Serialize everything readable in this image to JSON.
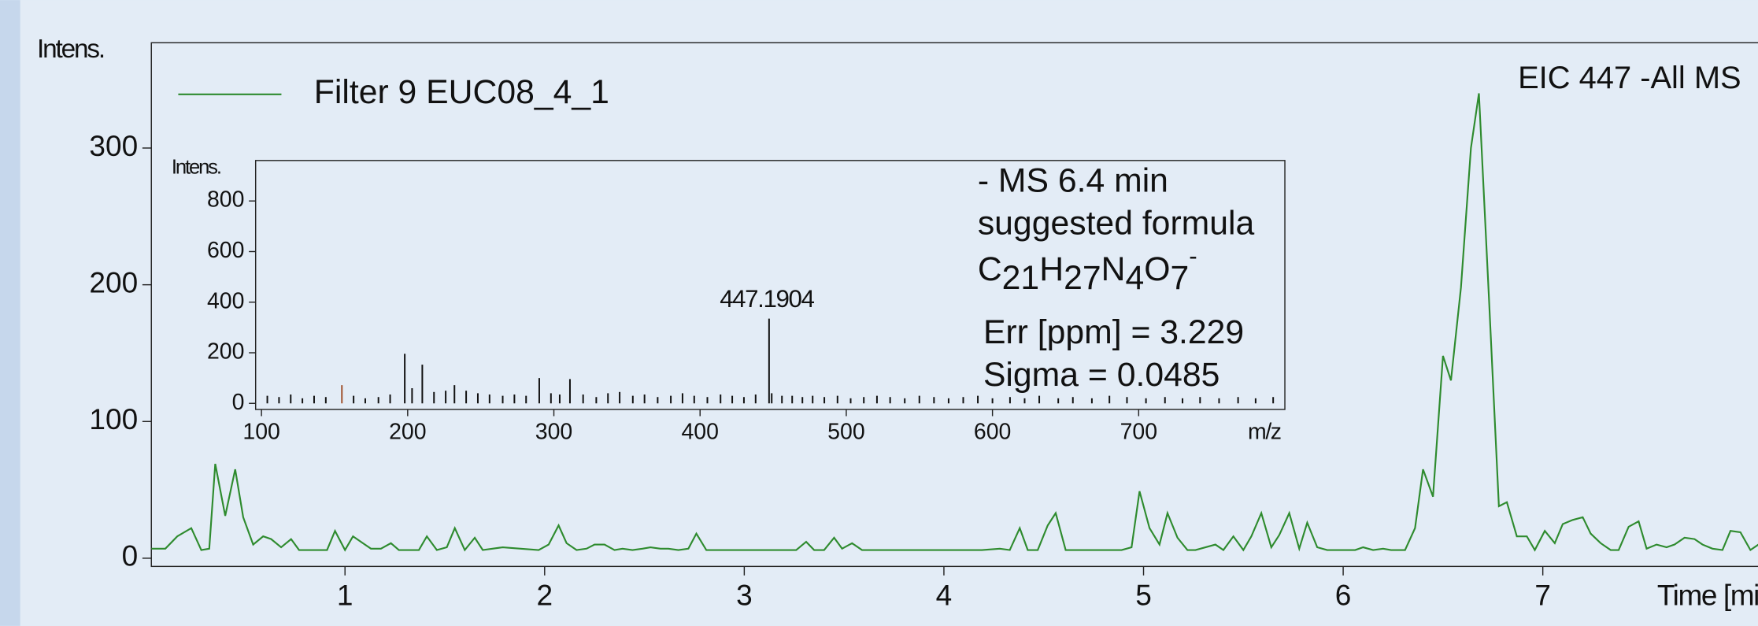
{
  "chart_data": [
    {
      "type": "line",
      "ylabel": "Intens.",
      "xlabel": "Time [min]",
      "annotations": [
        {
          "text": "EIC 447 -All MS"
        }
      ],
      "legend": "top-left",
      "xlim": [
        0.03,
        8.37
      ],
      "xticks": [
        1,
        2,
        3,
        4,
        5,
        6,
        7
      ],
      "ylim": [
        -6,
        377
      ],
      "yticks": [
        0,
        100,
        200,
        300
      ],
      "x": [
        0.03,
        0.1,
        0.16,
        0.23,
        0.28,
        0.32,
        0.35,
        0.4,
        0.45,
        0.49,
        0.54,
        0.59,
        0.63,
        0.68,
        0.73,
        0.77,
        0.82,
        0.91,
        0.95,
        1.0,
        1.04,
        1.09,
        1.13,
        1.18,
        1.23,
        1.27,
        1.32,
        1.37,
        1.41,
        1.46,
        1.51,
        1.55,
        1.6,
        1.65,
        1.69,
        1.79,
        1.88,
        1.97,
        2.02,
        2.07,
        2.11,
        2.16,
        2.21,
        2.25,
        2.3,
        2.35,
        2.39,
        2.44,
        2.49,
        2.53,
        2.58,
        2.62,
        2.67,
        2.72,
        2.76,
        2.81,
        3.26,
        3.31,
        3.35,
        3.4,
        3.45,
        3.49,
        3.54,
        3.59,
        3.68,
        4.02,
        4.19,
        4.28,
        4.33,
        4.38,
        4.42,
        4.47,
        4.52,
        4.56,
        4.61,
        4.89,
        4.94,
        4.98,
        5.03,
        5.08,
        5.12,
        5.17,
        5.22,
        5.26,
        5.31,
        5.36,
        5.4,
        5.45,
        5.5,
        5.54,
        5.59,
        5.64,
        5.68,
        5.73,
        5.78,
        5.82,
        5.87,
        5.92,
        6.01,
        6.06,
        6.1,
        6.15,
        6.2,
        6.24,
        6.31,
        6.36,
        6.4,
        6.45,
        6.5,
        6.54,
        6.59,
        6.64,
        6.68,
        6.73,
        6.78,
        6.82,
        6.87,
        6.92,
        6.96,
        7.01,
        7.06,
        7.1,
        7.15,
        7.2,
        7.24,
        7.29,
        7.34,
        7.38,
        7.43,
        7.48,
        7.52,
        7.57,
        7.62,
        7.66,
        7.71,
        7.76,
        7.8,
        7.85,
        7.9,
        7.94,
        7.99,
        8.04,
        8.08,
        8.13,
        8.18,
        8.22,
        8.27,
        8.32,
        8.36
      ],
      "series": [
        {
          "name": "Filter 9 EUC08_4_1",
          "color": "#2e8b2e",
          "values": [
            7,
            7,
            16,
            22,
            6,
            7,
            69,
            31,
            65,
            30,
            10,
            16,
            14,
            8,
            14,
            6,
            6,
            6,
            20,
            6,
            16,
            11,
            7,
            7,
            11,
            6,
            6,
            6,
            16,
            6,
            8,
            22,
            6,
            15,
            6,
            8,
            7,
            6,
            10,
            24,
            11,
            6,
            7,
            10,
            10,
            6,
            7,
            6,
            7,
            8,
            7,
            7,
            6,
            7,
            18,
            6,
            6,
            12,
            6,
            6,
            15,
            7,
            11,
            6,
            6,
            6,
            6,
            7,
            6,
            22,
            6,
            6,
            24,
            33,
            6,
            6,
            8,
            49,
            22,
            10,
            33,
            15,
            6,
            6,
            8,
            10,
            6,
            16,
            6,
            16,
            33,
            8,
            17,
            33,
            7,
            26,
            8,
            6,
            6,
            6,
            8,
            6,
            7,
            6,
            6,
            22,
            65,
            45,
            148,
            130,
            198,
            300,
            340,
            191,
            38,
            41,
            16,
            16,
            6,
            20,
            11,
            25,
            28,
            30,
            18,
            11,
            6,
            6,
            23,
            27,
            7,
            10,
            8,
            10,
            15,
            14,
            10,
            7,
            6,
            20,
            19,
            6,
            10,
            6,
            11,
            11,
            6,
            15,
            8
          ]
        }
      ]
    },
    {
      "type": "stem",
      "ylabel": "Intens.",
      "xlabel": "m/z",
      "xlim": [
        96,
        800
      ],
      "xticks": [
        100,
        200,
        300,
        400,
        500,
        600,
        700
      ],
      "ylim": [
        -24,
        960
      ],
      "yticks": [
        0,
        200,
        400,
        600,
        800
      ],
      "annotations": [
        {
          "text": "447.1904",
          "x": 447.1904,
          "y": 335
        }
      ],
      "info": [
        "- MS 6.4 min",
        "suggested formula"
      ],
      "formula": [
        [
          "C",
          "21"
        ],
        [
          "H",
          "27"
        ],
        [
          "N",
          "4"
        ],
        [
          "O",
          "7"
        ]
      ],
      "charge": "-",
      "info2": [
        "Err [ppm] = 3.229",
        "Sigma = 0.0485"
      ],
      "series": [
        {
          "color": "#111111",
          "x": [
            104,
            112,
            120,
            128,
            136,
            144,
            163,
            171,
            180,
            188,
            198,
            203,
            210,
            218,
            226,
            232,
            240,
            248,
            256,
            265,
            273,
            281,
            290,
            298,
            304,
            311,
            320,
            329,
            337,
            345,
            354,
            362,
            371,
            380,
            388,
            396,
            405,
            414,
            422,
            430,
            438,
            447.1904,
            449,
            456,
            463,
            470,
            477,
            485,
            494,
            503,
            512,
            521,
            530,
            540,
            550,
            560,
            570,
            580,
            590,
            600,
            612,
            622,
            632,
            645,
            655,
            668,
            680,
            692,
            705,
            718,
            730,
            742,
            755,
            768,
            780,
            792
          ],
          "values": [
            30,
            25,
            35,
            20,
            30,
            25,
            30,
            20,
            25,
            35,
            196,
            60,
            153,
            45,
            50,
            72,
            50,
            40,
            35,
            30,
            35,
            30,
            100,
            40,
            35,
            96,
            35,
            25,
            40,
            45,
            30,
            35,
            25,
            30,
            40,
            30,
            25,
            35,
            30,
            25,
            35,
            335,
            40,
            30,
            30,
            25,
            30,
            25,
            30,
            20,
            25,
            30,
            25,
            20,
            30,
            25,
            20,
            25,
            30,
            20,
            25,
            20,
            30,
            20,
            25,
            20,
            30,
            25,
            20,
            25,
            20,
            25,
            20,
            25,
            20,
            25
          ]
        },
        {
          "color": "#a0522d",
          "x": [
            155
          ],
          "values": [
            72
          ]
        }
      ]
    }
  ]
}
